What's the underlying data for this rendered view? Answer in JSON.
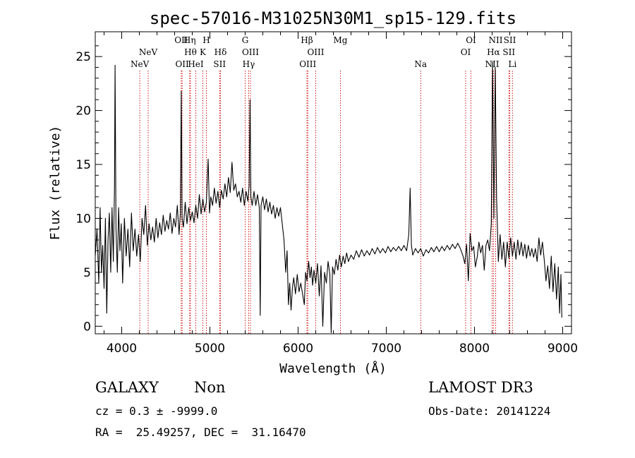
{
  "chart_data": {
    "type": "line",
    "title": "spec-57016-M31025N30M1_sp15-129.fits",
    "xlabel": "Wavelength (Å)",
    "ylabel": "Flux (relative)",
    "xlim": [
      3700,
      9100
    ],
    "ylim": [
      -0.7,
      27.3
    ],
    "xticks": [
      4000,
      5000,
      6000,
      7000,
      8000,
      9000
    ],
    "yticks": [
      0,
      5,
      10,
      15,
      20,
      25
    ],
    "emission_lines": [
      {
        "name": "NeV",
        "wavelength": 4205,
        "row": 2
      },
      {
        "name": "NeV",
        "wavelength": 4300,
        "row": 1
      },
      {
        "name": "OII",
        "wavelength": 4675,
        "row": 0
      },
      {
        "name": "OII",
        "wavelength": 4685,
        "row": 2
      },
      {
        "name": "Hη",
        "wavelength": 4770,
        "row": 0
      },
      {
        "name": "Hθ",
        "wavelength": 4780,
        "row": 1
      },
      {
        "name": "HeI",
        "wavelength": 4840,
        "row": 2
      },
      {
        "name": "H",
        "wavelength": 4960,
        "row": 0
      },
      {
        "name": "K",
        "wavelength": 4920,
        "row": 1
      },
      {
        "name": "Hδ",
        "wavelength": 5120,
        "row": 1
      },
      {
        "name": "SII",
        "wavelength": 5110,
        "row": 2
      },
      {
        "name": "G",
        "wavelength": 5400,
        "row": 0
      },
      {
        "name": "OIII",
        "wavelength": 5460,
        "row": 1
      },
      {
        "name": "Hγ",
        "wavelength": 5440,
        "row": 2
      },
      {
        "name": "Hβ",
        "wavelength": 6100,
        "row": 0
      },
      {
        "name": "OIII",
        "wavelength": 6200,
        "row": 1
      },
      {
        "name": "OIII",
        "wavelength": 6110,
        "row": 2
      },
      {
        "name": "Mg",
        "wavelength": 6480,
        "row": 0
      },
      {
        "name": "Na",
        "wavelength": 7390,
        "row": 2
      },
      {
        "name": "OI",
        "wavelength": 7960,
        "row": 0
      },
      {
        "name": "OI",
        "wavelength": 7900,
        "row": 1
      },
      {
        "name": "NII",
        "wavelength": 8240,
        "row": 0
      },
      {
        "name": "Hα",
        "wavelength": 8215,
        "row": 1
      },
      {
        "name": "NII",
        "wavelength": 8200,
        "row": 2
      },
      {
        "name": "SII",
        "wavelength": 8400,
        "row": 0
      },
      {
        "name": "SII",
        "wavelength": 8390,
        "row": 1
      },
      {
        "name": "Li",
        "wavelength": 8430,
        "row": 2
      }
    ],
    "series": [
      {
        "name": "flux",
        "points": [
          [
            3700,
            6.5
          ],
          [
            3720,
            9
          ],
          [
            3740,
            4
          ],
          [
            3755,
            11
          ],
          [
            3770,
            5
          ],
          [
            3785,
            7.5
          ],
          [
            3800,
            3.5
          ],
          [
            3815,
            10
          ],
          [
            3830,
            1.2
          ],
          [
            3845,
            8
          ],
          [
            3860,
            10.5
          ],
          [
            3875,
            5
          ],
          [
            3890,
            11
          ],
          [
            3905,
            6
          ],
          [
            3918,
            13
          ],
          [
            3925,
            24.2
          ],
          [
            3935,
            9
          ],
          [
            3950,
            5
          ],
          [
            3965,
            11
          ],
          [
            3980,
            7
          ],
          [
            3995,
            9.5
          ],
          [
            4010,
            4
          ],
          [
            4030,
            10
          ],
          [
            4050,
            6.5
          ],
          [
            4070,
            9
          ],
          [
            4090,
            5.5
          ],
          [
            4110,
            10.5
          ],
          [
            4130,
            7
          ],
          [
            4150,
            9
          ],
          [
            4170,
            6.5
          ],
          [
            4190,
            8.5
          ],
          [
            4210,
            6
          ],
          [
            4230,
            10
          ],
          [
            4250,
            8.5
          ],
          [
            4270,
            11.2
          ],
          [
            4290,
            7.5
          ],
          [
            4310,
            9.5
          ],
          [
            4330,
            8
          ],
          [
            4350,
            9.2
          ],
          [
            4370,
            7.8
          ],
          [
            4390,
            10
          ],
          [
            4410,
            8.2
          ],
          [
            4430,
            9.6
          ],
          [
            4450,
            8.5
          ],
          [
            4470,
            10.3
          ],
          [
            4490,
            8.8
          ],
          [
            4510,
            9.8
          ],
          [
            4530,
            9
          ],
          [
            4550,
            10.5
          ],
          [
            4570,
            8.6
          ],
          [
            4590,
            10
          ],
          [
            4610,
            9.2
          ],
          [
            4630,
            11.2
          ],
          [
            4650,
            8.5
          ],
          [
            4665,
            10.5
          ],
          [
            4675,
            21.8
          ],
          [
            4685,
            10
          ],
          [
            4700,
            9.2
          ],
          [
            4720,
            11.5
          ],
          [
            4740,
            9.5
          ],
          [
            4760,
            11
          ],
          [
            4780,
            9.8
          ],
          [
            4800,
            10.6
          ],
          [
            4820,
            9.6
          ],
          [
            4840,
            11.2
          ],
          [
            4860,
            10
          ],
          [
            4880,
            12.2
          ],
          [
            4900,
            10.4
          ],
          [
            4920,
            11.8
          ],
          [
            4940,
            10.6
          ],
          [
            4960,
            11.5
          ],
          [
            4980,
            15.5
          ],
          [
            4995,
            10.5
          ],
          [
            5010,
            12
          ],
          [
            5030,
            11.2
          ],
          [
            5050,
            12.8
          ],
          [
            5070,
            11.4
          ],
          [
            5090,
            12.5
          ],
          [
            5110,
            11
          ],
          [
            5130,
            12.6
          ],
          [
            5150,
            11.8
          ],
          [
            5170,
            13.2
          ],
          [
            5190,
            12
          ],
          [
            5210,
            13.8
          ],
          [
            5230,
            12.4
          ],
          [
            5250,
            15.2
          ],
          [
            5270,
            12.6
          ],
          [
            5290,
            13.2
          ],
          [
            5310,
            12
          ],
          [
            5330,
            12.5
          ],
          [
            5350,
            11.5
          ],
          [
            5370,
            12.8
          ],
          [
            5390,
            11.2
          ],
          [
            5410,
            12.5
          ],
          [
            5430,
            11.6
          ],
          [
            5445,
            13
          ],
          [
            5455,
            21
          ],
          [
            5465,
            12
          ],
          [
            5480,
            11.2
          ],
          [
            5500,
            12.5
          ],
          [
            5520,
            11.2
          ],
          [
            5540,
            12.2
          ],
          [
            5560,
            11
          ],
          [
            5570,
            1
          ],
          [
            5580,
            11.2
          ],
          [
            5600,
            12
          ],
          [
            5620,
            10.8
          ],
          [
            5640,
            11.8
          ],
          [
            5660,
            10.6
          ],
          [
            5680,
            11.5
          ],
          [
            5700,
            10.4
          ],
          [
            5720,
            11.2
          ],
          [
            5740,
            10
          ],
          [
            5760,
            11
          ],
          [
            5780,
            10.2
          ],
          [
            5800,
            11
          ],
          [
            5820,
            9.5
          ],
          [
            5840,
            8
          ],
          [
            5860,
            5
          ],
          [
            5875,
            7
          ],
          [
            5890,
            2
          ],
          [
            5905,
            4
          ],
          [
            5920,
            1.5
          ],
          [
            5935,
            3.5
          ],
          [
            5950,
            4.5
          ],
          [
            5970,
            3
          ],
          [
            5990,
            4.8
          ],
          [
            6010,
            3.2
          ],
          [
            6030,
            4
          ],
          [
            6050,
            3
          ],
          [
            6070,
            2
          ],
          [
            6085,
            5
          ],
          [
            6100,
            4.2
          ],
          [
            6120,
            6
          ],
          [
            6135,
            4.5
          ],
          [
            6150,
            5.5
          ],
          [
            6165,
            3.8
          ],
          [
            6180,
            5.2
          ],
          [
            6200,
            4
          ],
          [
            6220,
            5.8
          ],
          [
            6240,
            2.8
          ],
          [
            6260,
            5.6
          ],
          [
            6280,
            0
          ],
          [
            6300,
            5
          ],
          [
            6320,
            4
          ],
          [
            6340,
            6
          ],
          [
            6360,
            4.8
          ],
          [
            6375,
            -0.6
          ],
          [
            6390,
            5.5
          ],
          [
            6410,
            4.8
          ],
          [
            6430,
            6.2
          ],
          [
            6450,
            5.2
          ],
          [
            6470,
            6.6
          ],
          [
            6490,
            5.5
          ],
          [
            6510,
            6.5
          ],
          [
            6530,
            5.8
          ],
          [
            6550,
            6.8
          ],
          [
            6570,
            6
          ],
          [
            6600,
            6.6
          ],
          [
            6630,
            6.2
          ],
          [
            6660,
            7
          ],
          [
            6690,
            6.4
          ],
          [
            6720,
            7.1
          ],
          [
            6750,
            6.5
          ],
          [
            6780,
            7
          ],
          [
            6810,
            6.6
          ],
          [
            6840,
            7.2
          ],
          [
            6870,
            6.7
          ],
          [
            6900,
            7.3
          ],
          [
            6930,
            6.8
          ],
          [
            6960,
            7.2
          ],
          [
            6990,
            6.8
          ],
          [
            7020,
            7.4
          ],
          [
            7050,
            6.9
          ],
          [
            7080,
            7.3
          ],
          [
            7110,
            7
          ],
          [
            7140,
            7.4
          ],
          [
            7170,
            7
          ],
          [
            7200,
            7.5
          ],
          [
            7230,
            7
          ],
          [
            7255,
            8.5
          ],
          [
            7270,
            12.8
          ],
          [
            7285,
            7.5
          ],
          [
            7300,
            6.6
          ],
          [
            7330,
            7.2
          ],
          [
            7360,
            6.8
          ],
          [
            7390,
            7.2
          ],
          [
            7420,
            6.5
          ],
          [
            7450,
            7.1
          ],
          [
            7480,
            6.8
          ],
          [
            7510,
            7.3
          ],
          [
            7540,
            6.9
          ],
          [
            7570,
            7.4
          ],
          [
            7600,
            6.9
          ],
          [
            7630,
            7.4
          ],
          [
            7660,
            7
          ],
          [
            7690,
            7.5
          ],
          [
            7720,
            7.1
          ],
          [
            7750,
            7.6
          ],
          [
            7780,
            7.2
          ],
          [
            7810,
            7.7
          ],
          [
            7840,
            7.2
          ],
          [
            7870,
            6.5
          ],
          [
            7890,
            5.8
          ],
          [
            7910,
            7.6
          ],
          [
            7930,
            4.2
          ],
          [
            7950,
            8.6
          ],
          [
            7970,
            7
          ],
          [
            7990,
            7.4
          ],
          [
            8010,
            5.5
          ],
          [
            8030,
            6.4
          ],
          [
            8050,
            7.8
          ],
          [
            8070,
            6.8
          ],
          [
            8090,
            7.5
          ],
          [
            8110,
            5.2
          ],
          [
            8130,
            7.5
          ],
          [
            8150,
            8
          ],
          [
            8170,
            7
          ],
          [
            8190,
            9.5
          ],
          [
            8205,
            24.5
          ],
          [
            8220,
            10
          ],
          [
            8235,
            24
          ],
          [
            8250,
            12
          ],
          [
            8270,
            6
          ],
          [
            8290,
            8.5
          ],
          [
            8310,
            6.2
          ],
          [
            8330,
            7.8
          ],
          [
            8350,
            5.5
          ],
          [
            8370,
            7.8
          ],
          [
            8390,
            6.3
          ],
          [
            8410,
            8.2
          ],
          [
            8430,
            6.5
          ],
          [
            8450,
            7.8
          ],
          [
            8470,
            6.2
          ],
          [
            8490,
            8
          ],
          [
            8510,
            6.6
          ],
          [
            8530,
            7.8
          ],
          [
            8550,
            6.5
          ],
          [
            8570,
            7.6
          ],
          [
            8590,
            6.3
          ],
          [
            8610,
            7.5
          ],
          [
            8630,
            6.5
          ],
          [
            8650,
            7.2
          ],
          [
            8670,
            6.4
          ],
          [
            8690,
            7.2
          ],
          [
            8710,
            6
          ],
          [
            8730,
            8.2
          ],
          [
            8750,
            6.6
          ],
          [
            8770,
            7.8
          ],
          [
            8790,
            6.2
          ],
          [
            8810,
            4.2
          ],
          [
            8830,
            5.6
          ],
          [
            8850,
            3.5
          ],
          [
            8870,
            6.5
          ],
          [
            8890,
            3.2
          ],
          [
            8910,
            5.8
          ],
          [
            8930,
            2.5
          ],
          [
            8950,
            5.5
          ],
          [
            8965,
            1.2
          ],
          [
            8980,
            4.8
          ],
          [
            8990,
            0.8
          ]
        ]
      }
    ]
  },
  "info": {
    "class": "GALAXY",
    "subclass": "Non",
    "survey": "LAMOST DR3",
    "cz": "cz = 0.3 ± -9999.0",
    "obs_date": "Obs-Date: 20141224",
    "coords": "RA =  25.49257, DEC =  31.16470"
  },
  "colors": {
    "line_marker": "#cc0000",
    "spectrum": "#000000"
  }
}
